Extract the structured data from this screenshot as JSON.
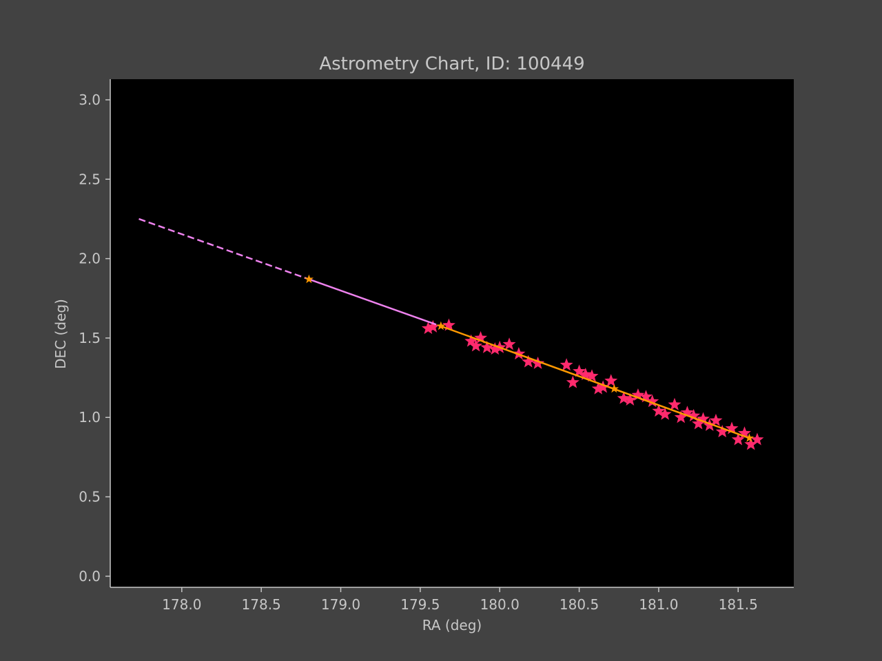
{
  "chart_data": {
    "type": "scatter",
    "title": "Astrometry Chart, ID: 100449",
    "xlabel": "RA (deg)",
    "ylabel": "DEC (deg)",
    "xlim": [
      177.55,
      181.85
    ],
    "ylim": [
      -0.07,
      3.13
    ],
    "xticks": [
      {
        "value": 178.0,
        "label": "178.0"
      },
      {
        "value": 178.5,
        "label": "178.5"
      },
      {
        "value": 179.0,
        "label": "179.0"
      },
      {
        "value": 179.5,
        "label": "179.5"
      },
      {
        "value": 180.0,
        "label": "180.0"
      },
      {
        "value": 180.5,
        "label": "180.5"
      },
      {
        "value": 181.0,
        "label": "181.0"
      },
      {
        "value": 181.5,
        "label": "181.5"
      }
    ],
    "yticks": [
      {
        "value": 0.0,
        "label": "0.0"
      },
      {
        "value": 0.5,
        "label": "0.5"
      },
      {
        "value": 1.0,
        "label": "1.0"
      },
      {
        "value": 1.5,
        "label": "1.5"
      },
      {
        "value": 2.0,
        "label": "2.0"
      },
      {
        "value": 2.5,
        "label": "2.5"
      },
      {
        "value": 3.0,
        "label": "3.0"
      }
    ],
    "grid": false,
    "background": "#000000",
    "series": [
      {
        "kind": "observations",
        "marker": "star",
        "color": "#ff2a6d",
        "x": [
          179.55,
          179.58,
          179.68,
          179.82,
          179.85,
          179.88,
          179.92,
          179.97,
          180.0,
          180.06,
          180.12,
          180.18,
          180.24,
          180.42,
          180.46,
          180.5,
          180.54,
          180.58,
          180.62,
          180.65,
          180.7,
          180.78,
          180.82,
          180.87,
          180.92,
          180.96,
          181.0,
          181.04,
          181.1,
          181.14,
          181.18,
          181.22,
          181.25,
          181.28,
          181.32,
          181.36,
          181.4,
          181.46,
          181.5,
          181.54,
          181.58,
          181.62
        ],
        "y": [
          1.56,
          1.57,
          1.58,
          1.48,
          1.45,
          1.5,
          1.44,
          1.43,
          1.44,
          1.46,
          1.4,
          1.35,
          1.34,
          1.33,
          1.22,
          1.29,
          1.27,
          1.26,
          1.18,
          1.19,
          1.23,
          1.12,
          1.11,
          1.14,
          1.13,
          1.1,
          1.04,
          1.02,
          1.08,
          1.0,
          1.03,
          1.01,
          0.96,
          0.99,
          0.95,
          0.98,
          0.91,
          0.93,
          0.86,
          0.9,
          0.83,
          0.86
        ]
      },
      {
        "kind": "fit",
        "style": "solid",
        "color": "#ff9900",
        "x": [
          179.63,
          181.57
        ],
        "y": [
          1.575,
          0.87
        ]
      },
      {
        "kind": "fit-points",
        "marker": "star",
        "color": "#ff9900",
        "x": [
          179.63,
          180.72,
          181.57
        ],
        "y": [
          1.575,
          1.18,
          0.87
        ]
      },
      {
        "kind": "extrapolation",
        "style": "solid",
        "color": "#ee82ee",
        "x": [
          178.8,
          179.6
        ],
        "y": [
          1.87,
          1.585
        ]
      },
      {
        "kind": "extrapolation",
        "style": "dashed",
        "color": "#ee82ee",
        "x": [
          177.73,
          178.8
        ],
        "y": [
          2.25,
          1.87
        ]
      },
      {
        "kind": "extrapolation-point",
        "marker": "star",
        "color": "#ff9900",
        "x": [
          178.8
        ],
        "y": [
          1.87
        ]
      }
    ]
  }
}
